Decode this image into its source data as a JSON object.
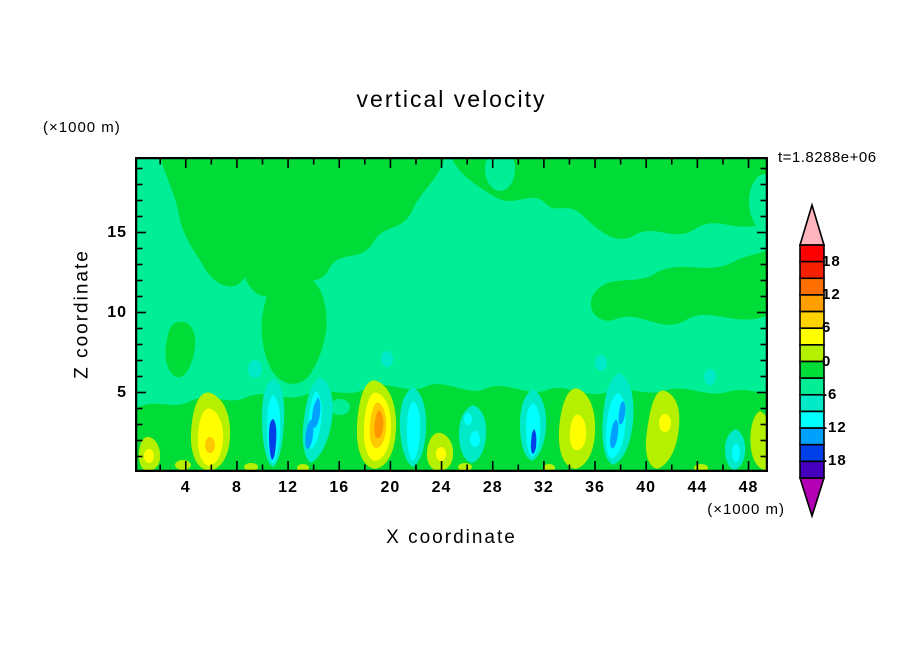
{
  "title": "vertical velocity",
  "t_label": "t=1.8288e+06",
  "axes": {
    "x_label": "X coordinate",
    "x_unit": "(×1000 m)",
    "y_label": "Z coordinate",
    "y_unit": "(×1000 m)",
    "x_major_ticks": [
      4,
      8,
      12,
      16,
      20,
      24,
      28,
      32,
      36,
      40,
      44,
      48
    ],
    "x_minor_ticks": [
      2,
      6,
      10,
      14,
      18,
      22,
      26,
      30,
      34,
      38,
      42,
      46
    ],
    "y_major_ticks": [
      5,
      10,
      15
    ],
    "y_minor_ticks": [
      1,
      2,
      3,
      4,
      6,
      7,
      8,
      9,
      11,
      12,
      13,
      14,
      16,
      17,
      18,
      19
    ],
    "x_range": [
      0,
      49.5
    ],
    "y_range": [
      0,
      19.75
    ]
  },
  "colorbar": {
    "labels": [
      "18",
      "12",
      "6",
      "0",
      "-6",
      "-12",
      "-18"
    ],
    "levels": [
      21,
      18,
      15,
      12,
      9,
      6,
      3,
      0,
      -3,
      -6,
      -9,
      -12,
      -15,
      -18,
      -21
    ],
    "colors": [
      "#FF0000",
      "#F52000",
      "#FF6E00",
      "#FFA000",
      "#FFD200",
      "#FFFF00",
      "#B4F000",
      "#00DC37",
      "#00EE96",
      "#00EAC8",
      "#00FFFF",
      "#00A0FF",
      "#0040E8",
      "#4400BE"
    ],
    "over_color": "#FFB4BE",
    "under_color": "#B400B4"
  },
  "chart_data": {
    "type": "heatmap",
    "title": "vertical velocity",
    "xlabel": "X coordinate (×1000 m)",
    "ylabel": "Z coordinate (×1000 m)",
    "xlim": [
      0,
      49.5
    ],
    "ylim": [
      0,
      19.75
    ],
    "time_annotation": "t=1.8288e+06",
    "contour_interval": 3,
    "value_range_shown": [
      -21,
      21
    ],
    "background_field": "weak subsidence -3..0 (spring green) with broad weak updraft patches 0..3 (green) aloft",
    "updraft_plumes": [
      {
        "x": 1.2,
        "z_top": 2.5,
        "peak_w": 4
      },
      {
        "x": 5.9,
        "z_top": 5.0,
        "peak_w": 8
      },
      {
        "x": 19.3,
        "z_top": 5.5,
        "peak_w": 13
      },
      {
        "x": 24.0,
        "z_top": 2.5,
        "peak_w": 6
      },
      {
        "x": 34.7,
        "z_top": 5.3,
        "peak_w": 8
      },
      {
        "x": 41.7,
        "z_top": 5.0,
        "peak_w": 6
      },
      {
        "x": 48.9,
        "z_top": 3.8,
        "peak_w": 5
      }
    ],
    "downdraft_plumes": [
      {
        "x": 10.7,
        "z_top": 5.8,
        "peak_w": -13
      },
      {
        "x": 14.3,
        "z_top": 5.8,
        "peak_w": -10
      },
      {
        "x": 21.8,
        "z_top": 5.2,
        "peak_w": -8
      },
      {
        "x": 26.4,
        "z_top": 4.2,
        "peak_w": -7
      },
      {
        "x": 31.2,
        "z_top": 5.5,
        "peak_w": -12
      },
      {
        "x": 37.9,
        "z_top": 6.2,
        "peak_w": -11
      },
      {
        "x": 47.0,
        "z_top": 2.7,
        "peak_w": -5
      }
    ]
  }
}
